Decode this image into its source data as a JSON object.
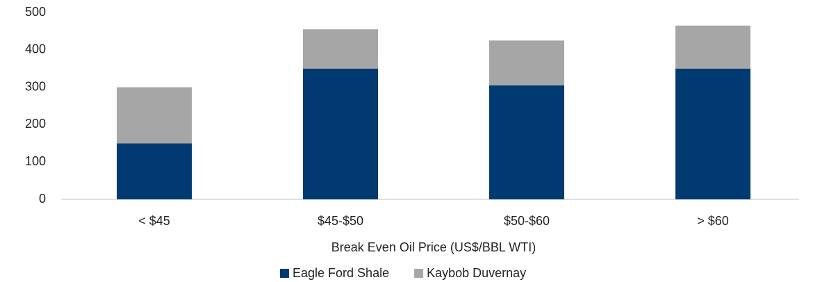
{
  "chart_data": {
    "type": "stacked_bar",
    "xlabel": "Break Even Oil Price (US$/BBL WTI)",
    "categories": [
      "< $45",
      "$45-$50",
      "$50-$60",
      "> $60"
    ],
    "series": [
      {
        "name": "Eagle Ford Shale",
        "color": "#003a70",
        "values": [
          150,
          350,
          305,
          350
        ]
      },
      {
        "name": "Kaybob Duvernay",
        "color": "#a6a6a6",
        "values": [
          150,
          105,
          120,
          115
        ]
      }
    ],
    "ylim": [
      0,
      500
    ],
    "yticks": [
      0,
      100,
      200,
      300,
      400,
      500
    ],
    "grid": false,
    "legend": "bottom"
  }
}
